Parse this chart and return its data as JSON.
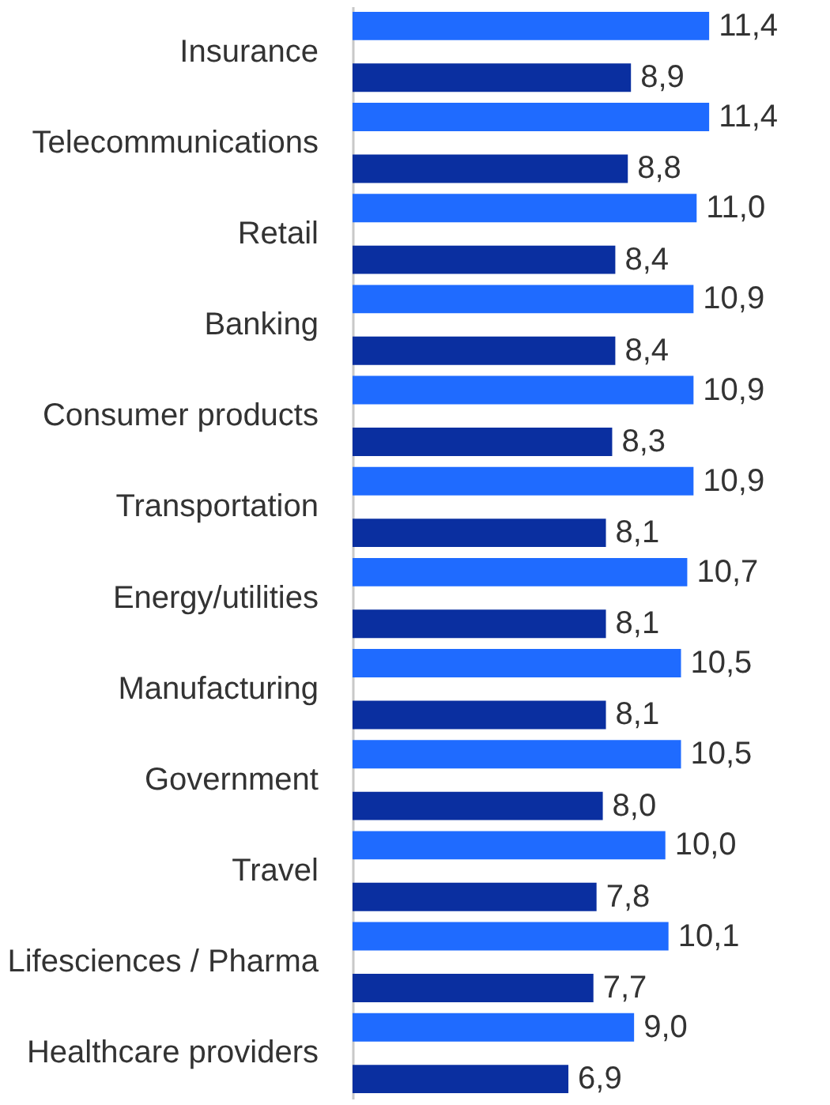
{
  "chart_data": {
    "type": "bar",
    "orientation": "horizontal",
    "categories": [
      "Insurance",
      "Telecommunications",
      "Retail",
      "Banking",
      "Consumer products",
      "Transportation",
      "Energy/utilities",
      "Manufacturing",
      "Government ",
      "Travel",
      "Lifesciences / Pharma",
      "Healthcare providers"
    ],
    "series": [
      {
        "color": "#1f6bff",
        "values": [
          11.4,
          11.4,
          11.0,
          10.9,
          10.9,
          10.9,
          10.7,
          10.5,
          10.5,
          10.0,
          10.1,
          9.0
        ],
        "value_labels": [
          "11,4",
          "11,4",
          "11,0",
          "10,9",
          "10,9",
          "10,9",
          "10,7",
          "10,5",
          "10,5",
          "10,0",
          "10,1",
          "9,0"
        ]
      },
      {
        "color": "#0a2fa0",
        "values": [
          8.9,
          8.8,
          8.4,
          8.4,
          8.3,
          8.1,
          8.1,
          8.1,
          8.0,
          7.8,
          7.7,
          6.9
        ],
        "value_labels": [
          "8,9",
          "8,8",
          "8,4",
          "8,4",
          "8,3",
          "8,1",
          "8,1",
          "8,1",
          "8,0",
          "7,8",
          "7,7",
          "6,9"
        ]
      }
    ]
  }
}
